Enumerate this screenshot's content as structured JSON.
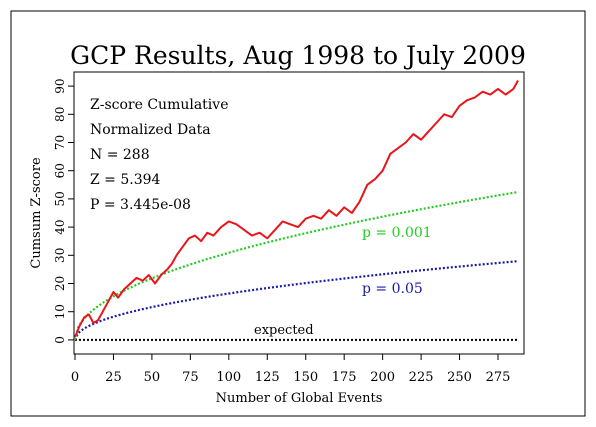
{
  "chart_data": {
    "type": "line",
    "title": "GCP Results, Aug 1998 to July 2009",
    "xlabel": "Number of Global Events",
    "ylabel": "Cumsum Z-score",
    "xlim": [
      0,
      288
    ],
    "ylim": [
      -5,
      95
    ],
    "x_ticks": [
      0,
      25,
      50,
      75,
      100,
      125,
      150,
      175,
      200,
      225,
      250,
      275
    ],
    "y_ticks": [
      0,
      10,
      20,
      30,
      40,
      50,
      60,
      70,
      80,
      90
    ],
    "grid": false,
    "stats": {
      "line1": "Z-score Cumulative",
      "line2": "Normalized Data",
      "line3": "N = 288",
      "line4": "Z = 5.394",
      "line5": "P = 3.445e-08"
    },
    "annotations": {
      "p001": "p = 0.001",
      "p005": "p = 0.05",
      "expected": "expected"
    },
    "series": [
      {
        "role": "cumulative",
        "color": "#e8151b",
        "x": [
          0,
          3,
          6,
          9,
          12,
          15,
          18,
          22,
          25,
          28,
          32,
          36,
          40,
          44,
          48,
          52,
          56,
          60,
          63,
          66,
          70,
          74,
          78,
          82,
          86,
          90,
          95,
          100,
          105,
          110,
          115,
          120,
          125,
          130,
          135,
          140,
          145,
          150,
          155,
          160,
          165,
          170,
          175,
          180,
          185,
          190,
          195,
          200,
          205,
          210,
          215,
          220,
          225,
          230,
          235,
          240,
          245,
          250,
          255,
          260,
          265,
          270,
          275,
          280,
          285,
          288
        ],
        "y": [
          1,
          5,
          8,
          9,
          6,
          7,
          10,
          14,
          17,
          15,
          18,
          20,
          22,
          21,
          23,
          20,
          23,
          25,
          27,
          30,
          33,
          36,
          37,
          35,
          38,
          37,
          40,
          42,
          41,
          39,
          37,
          38,
          36,
          39,
          42,
          41,
          40,
          43,
          44,
          43,
          46,
          44,
          47,
          45,
          49,
          55,
          57,
          60,
          66,
          68,
          70,
          73,
          71,
          74,
          77,
          80,
          79,
          83,
          85,
          86,
          88,
          87,
          89,
          87,
          89,
          92
        ]
      },
      {
        "role": "p = 0.001",
        "color": "#22cc22",
        "envelope_coef": 3.09
      },
      {
        "role": "p = 0.05",
        "color": "#1a1aaa",
        "envelope_coef": 1.645
      },
      {
        "role": "expected",
        "color": "#000000",
        "constant": 0
      }
    ]
  }
}
